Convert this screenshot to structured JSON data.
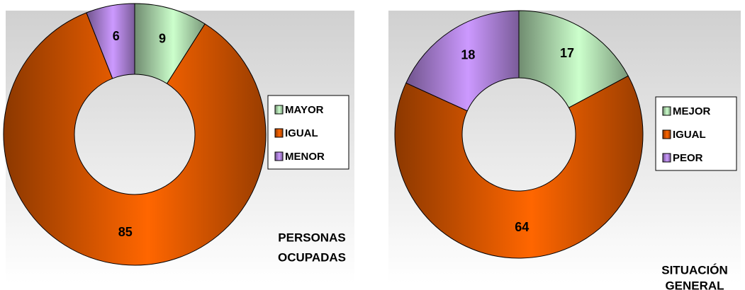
{
  "chart_data": [
    {
      "type": "donut",
      "title": [
        "PERSONAS",
        "OCUPADAS"
      ],
      "categories": [
        "MAYOR",
        "IGUAL",
        "MENOR"
      ],
      "values": [
        9,
        85,
        6
      ],
      "colors": [
        "#ccffcc",
        "#ff6600",
        "#cc99ff"
      ]
    },
    {
      "type": "donut",
      "title": [
        "SITUACIÓN",
        "GENERAL"
      ],
      "categories": [
        "MEJOR",
        "IGUAL",
        "PEOR"
      ],
      "values": [
        17,
        64,
        18
      ],
      "colors": [
        "#ccffcc",
        "#ff6600",
        "#cc99ff"
      ]
    }
  ]
}
